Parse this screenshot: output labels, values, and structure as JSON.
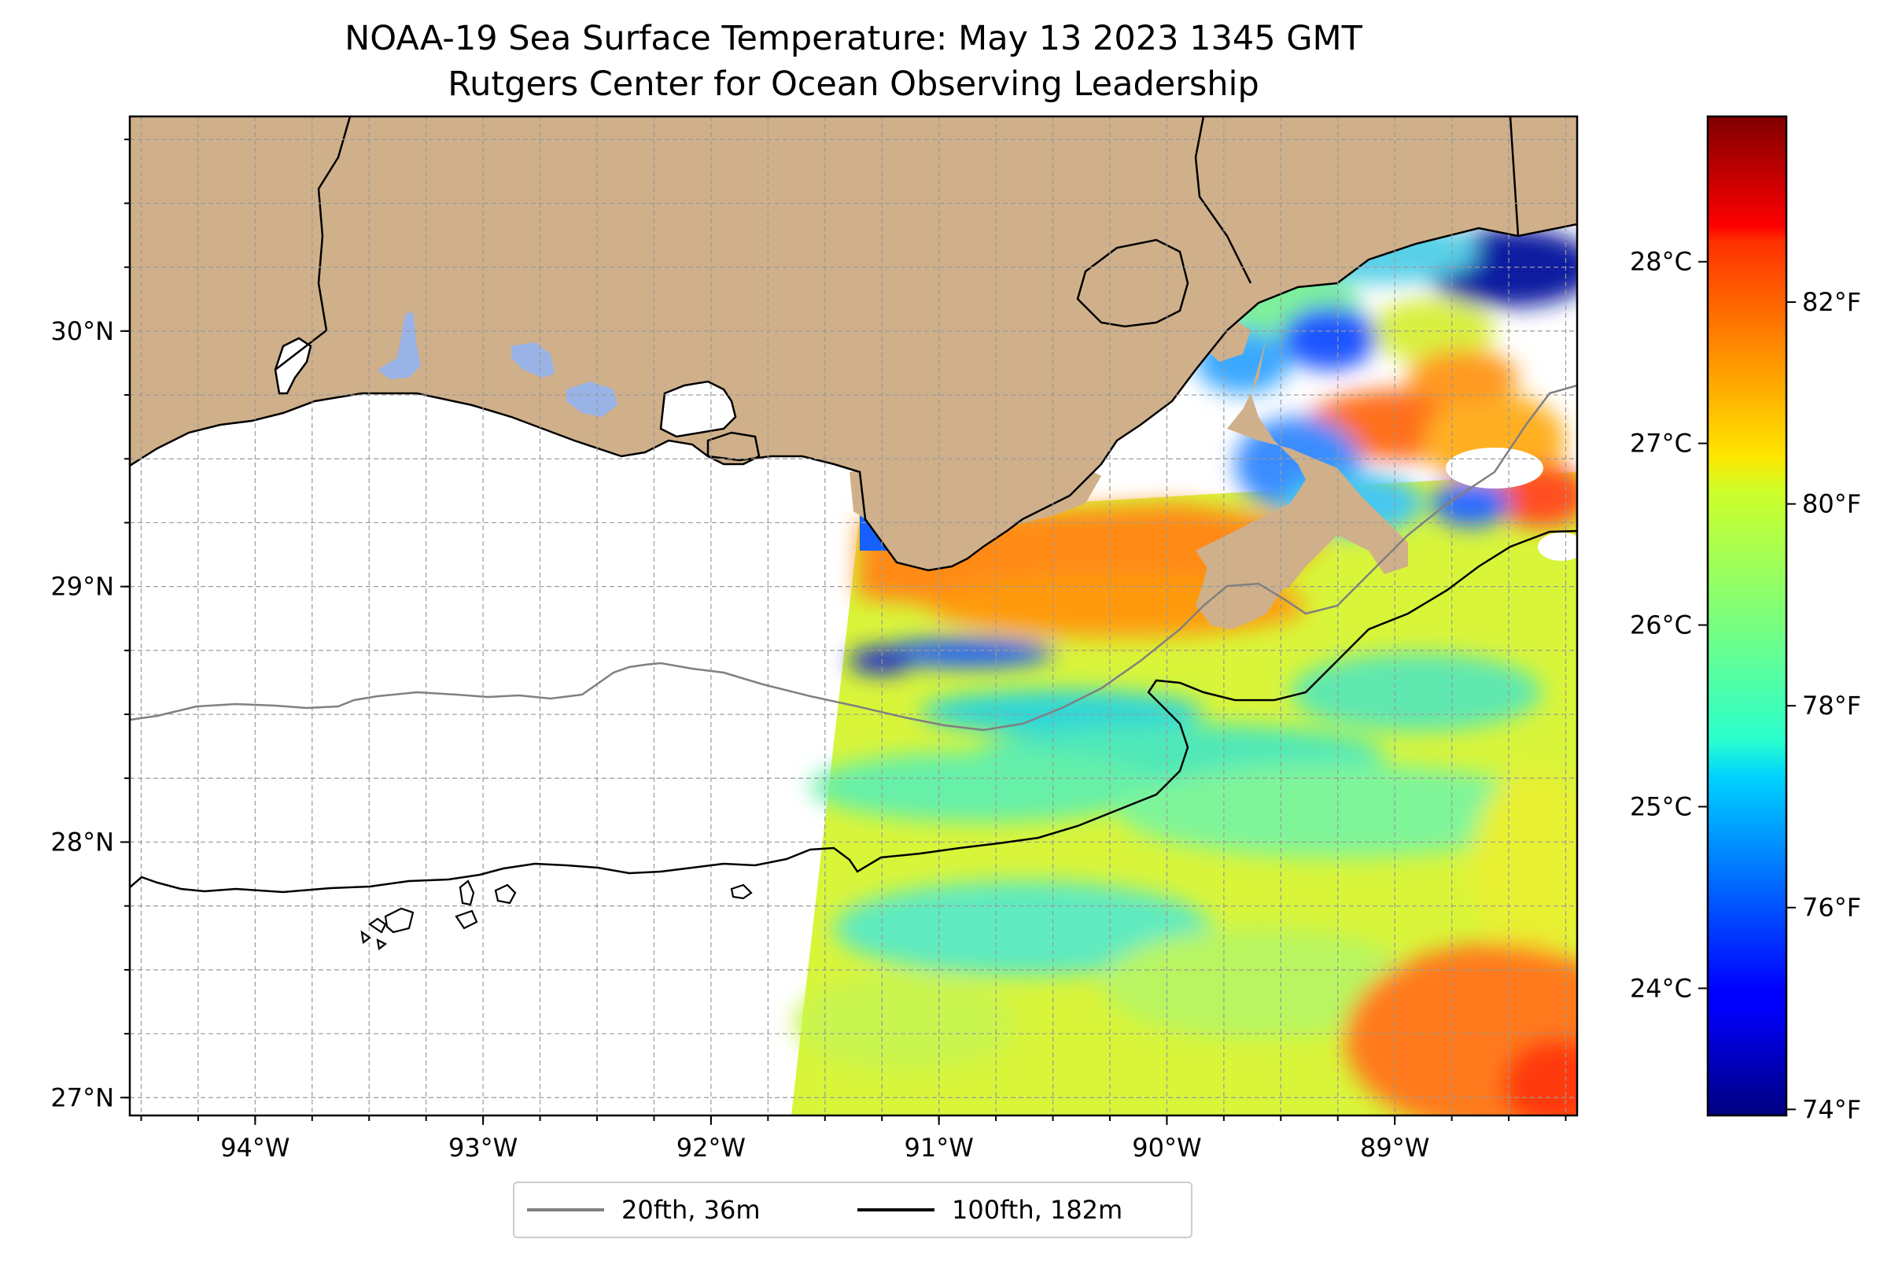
{
  "title": {
    "line1": "NOAA-19 Sea Surface Temperature: May 13 2023 1345 GMT",
    "line2": "Rutgers Center for Ocean Observing Leadership"
  },
  "map": {
    "extent": {
      "lon_min": -94.55,
      "lon_max": -88.2,
      "lat_min": 26.93,
      "lat_max": 30.84
    },
    "lon_ticks": [
      -94,
      -93,
      -92,
      -91,
      -90,
      -89
    ],
    "lon_tick_labels": [
      "94°W",
      "93°W",
      "92°W",
      "91°W",
      "90°W",
      "89°W"
    ],
    "lat_ticks": [
      27,
      28,
      29,
      30
    ],
    "lat_tick_labels": [
      "27°N",
      "28°N",
      "29°N",
      "30°N"
    ],
    "gridlines": "on (dashed, 0.25° spacing)",
    "colors": {
      "land": "#cfb08a",
      "lakes": "#99b3e6",
      "isobath_20": "#808080",
      "isobath_100": "#000000"
    }
  },
  "colorbar": {
    "colormap": "jet",
    "celsius_range": [
      23.3,
      28.8
    ],
    "celsius_ticks": [
      24,
      25,
      26,
      27,
      28
    ],
    "celsius_labels": [
      "24°C",
      "25°C",
      "26°C",
      "27°C",
      "28°C"
    ],
    "fahrenheit_ticks": [
      74,
      76,
      78,
      80,
      82
    ],
    "fahrenheit_labels": [
      "74°F",
      "76°F",
      "78°F",
      "80°F",
      "82°F"
    ]
  },
  "legend": {
    "placement": "bottom-center",
    "items": [
      {
        "label": "20fth, 36m",
        "color": "#808080"
      },
      {
        "label": "100fth, 182m",
        "color": "#000000"
      }
    ]
  }
}
